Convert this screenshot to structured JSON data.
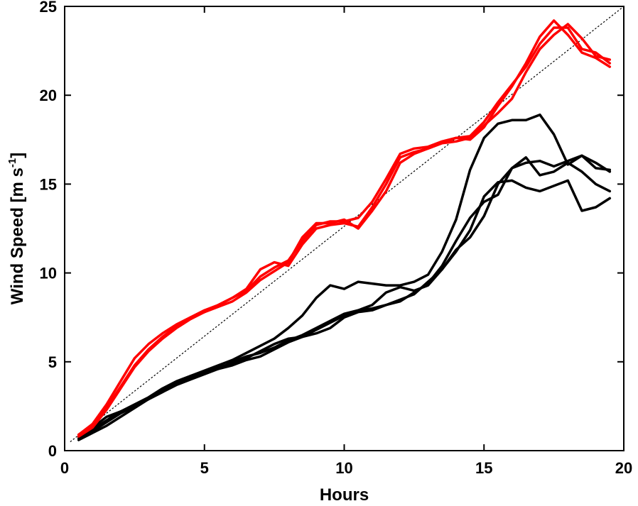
{
  "chart_data": {
    "type": "line",
    "title": "",
    "xlabel": "Hours",
    "ylabel": "Wind Speed [m s",
    "ylabel_superscript": "-1",
    "ylabel_close": "]",
    "xlim": [
      0,
      20
    ],
    "ylim": [
      0,
      25
    ],
    "xticks": [
      0,
      5,
      10,
      15,
      20
    ],
    "yticks": [
      0,
      5,
      10,
      15,
      20,
      25
    ],
    "grid": false,
    "colors": {
      "red_group": "#ff0000",
      "black_group": "#000000",
      "reference": "#000000"
    },
    "reference_line": {
      "style": "dotted",
      "points": [
        [
          0.2,
          0.5
        ],
        [
          20,
          25
        ]
      ]
    },
    "series": [
      {
        "color": "red_group",
        "points": [
          [
            0.5,
            0.9
          ],
          [
            1,
            1.4
          ],
          [
            1.5,
            2.4
          ],
          [
            2,
            3.6
          ],
          [
            2.5,
            4.8
          ],
          [
            3,
            5.7
          ],
          [
            3.5,
            6.4
          ],
          [
            4,
            7.0
          ],
          [
            4.5,
            7.5
          ],
          [
            5,
            7.9
          ],
          [
            5.5,
            8.2
          ],
          [
            6,
            8.6
          ],
          [
            6.5,
            9.0
          ],
          [
            7,
            9.8
          ],
          [
            7.5,
            10.3
          ],
          [
            8,
            10.7
          ],
          [
            8.5,
            11.8
          ],
          [
            9,
            12.7
          ],
          [
            9.5,
            12.9
          ],
          [
            10,
            12.9
          ],
          [
            10.5,
            13.1
          ],
          [
            11,
            14.0
          ],
          [
            11.5,
            15.3
          ],
          [
            12,
            16.7
          ],
          [
            12.5,
            17.0
          ],
          [
            13,
            17.1
          ],
          [
            13.5,
            17.4
          ],
          [
            14,
            17.6
          ],
          [
            14.5,
            17.7
          ],
          [
            15,
            18.5
          ],
          [
            15.5,
            19.6
          ],
          [
            16,
            20.6
          ],
          [
            16.5,
            21.6
          ],
          [
            17,
            22.9
          ],
          [
            17.5,
            23.8
          ],
          [
            18,
            23.8
          ],
          [
            18.5,
            22.6
          ],
          [
            19,
            22.4
          ],
          [
            19.5,
            21.8
          ]
        ]
      },
      {
        "color": "red_group",
        "points": [
          [
            0.5,
            0.8
          ],
          [
            1,
            1.3
          ],
          [
            1.5,
            2.3
          ],
          [
            2,
            3.5
          ],
          [
            2.5,
            4.7
          ],
          [
            3,
            5.6
          ],
          [
            3.5,
            6.3
          ],
          [
            4,
            6.9
          ],
          [
            4.5,
            7.4
          ],
          [
            5,
            7.8
          ],
          [
            5.5,
            8.2
          ],
          [
            6,
            8.6
          ],
          [
            6.5,
            9.1
          ],
          [
            7,
            10.2
          ],
          [
            7.5,
            10.6
          ],
          [
            8,
            10.4
          ],
          [
            8.5,
            11.6
          ],
          [
            9,
            12.5
          ],
          [
            9.5,
            12.7
          ],
          [
            10,
            12.8
          ],
          [
            10.5,
            12.6
          ],
          [
            11,
            13.7
          ],
          [
            11.5,
            15.0
          ],
          [
            12,
            16.5
          ],
          [
            12.5,
            16.8
          ],
          [
            13,
            17.0
          ],
          [
            13.5,
            17.3
          ],
          [
            14,
            17.6
          ],
          [
            14.5,
            17.5
          ],
          [
            15,
            18.2
          ],
          [
            15.5,
            19.4
          ],
          [
            16,
            20.5
          ],
          [
            16.5,
            21.8
          ],
          [
            17,
            23.3
          ],
          [
            17.5,
            24.2
          ],
          [
            18,
            23.4
          ],
          [
            18.5,
            22.4
          ],
          [
            19,
            22.1
          ],
          [
            19.5,
            21.6
          ]
        ]
      },
      {
        "color": "red_group",
        "points": [
          [
            0.5,
            0.9
          ],
          [
            1,
            1.5
          ],
          [
            1.5,
            2.6
          ],
          [
            2,
            3.9
          ],
          [
            2.5,
            5.2
          ],
          [
            3,
            6.0
          ],
          [
            3.5,
            6.6
          ],
          [
            4,
            7.1
          ],
          [
            4.5,
            7.5
          ],
          [
            5,
            7.8
          ],
          [
            5.5,
            8.1
          ],
          [
            6,
            8.4
          ],
          [
            6.5,
            8.9
          ],
          [
            7,
            9.6
          ],
          [
            7.5,
            10.1
          ],
          [
            8,
            10.6
          ],
          [
            8.5,
            12.0
          ],
          [
            9,
            12.8
          ],
          [
            9.5,
            12.8
          ],
          [
            10,
            13.0
          ],
          [
            10.5,
            12.5
          ],
          [
            11,
            13.5
          ],
          [
            11.5,
            14.6
          ],
          [
            12,
            16.2
          ],
          [
            12.5,
            16.7
          ],
          [
            13,
            17.0
          ],
          [
            13.5,
            17.3
          ],
          [
            14,
            17.4
          ],
          [
            14.5,
            17.6
          ],
          [
            15,
            18.3
          ],
          [
            15.5,
            19.0
          ],
          [
            16,
            19.8
          ],
          [
            16.5,
            21.3
          ],
          [
            17,
            22.6
          ],
          [
            17.5,
            23.4
          ],
          [
            18,
            24.0
          ],
          [
            18.5,
            23.2
          ],
          [
            19,
            22.2
          ],
          [
            19.5,
            22.0
          ]
        ]
      },
      {
        "color": "black_group",
        "points": [
          [
            0.5,
            0.7
          ],
          [
            1,
            1.3
          ],
          [
            1.5,
            1.9
          ],
          [
            2,
            2.2
          ],
          [
            2.5,
            2.5
          ],
          [
            3,
            2.9
          ],
          [
            3.5,
            3.3
          ],
          [
            4,
            3.8
          ],
          [
            4.5,
            4.2
          ],
          [
            5,
            4.5
          ],
          [
            5.5,
            4.8
          ],
          [
            6,
            5.1
          ],
          [
            6.5,
            5.5
          ],
          [
            7,
            5.9
          ],
          [
            7.5,
            6.3
          ],
          [
            8,
            6.9
          ],
          [
            8.5,
            7.6
          ],
          [
            9,
            8.6
          ],
          [
            9.5,
            9.3
          ],
          [
            10,
            9.1
          ],
          [
            10.5,
            9.5
          ],
          [
            11,
            9.4
          ],
          [
            11.5,
            9.3
          ],
          [
            12,
            9.3
          ],
          [
            12.5,
            9.5
          ],
          [
            13,
            9.9
          ],
          [
            13.5,
            11.2
          ],
          [
            14,
            13.0
          ],
          [
            14.5,
            15.8
          ],
          [
            15,
            17.6
          ],
          [
            15.5,
            18.4
          ],
          [
            16,
            18.6
          ],
          [
            16.5,
            18.6
          ],
          [
            17,
            18.9
          ],
          [
            17.5,
            17.8
          ],
          [
            18,
            16.1
          ],
          [
            18.5,
            16.6
          ],
          [
            19,
            16.2
          ],
          [
            19.5,
            15.7
          ]
        ]
      },
      {
        "color": "black_group",
        "points": [
          [
            0.5,
            0.8
          ],
          [
            1,
            1.2
          ],
          [
            1.5,
            1.7
          ],
          [
            2,
            2.2
          ],
          [
            2.5,
            2.6
          ],
          [
            3,
            3.0
          ],
          [
            3.5,
            3.5
          ],
          [
            4,
            3.9
          ],
          [
            4.5,
            4.2
          ],
          [
            5,
            4.4
          ],
          [
            5.5,
            4.6
          ],
          [
            6,
            5.0
          ],
          [
            6.5,
            5.3
          ],
          [
            7,
            5.5
          ],
          [
            7.5,
            5.8
          ],
          [
            8,
            6.2
          ],
          [
            8.5,
            6.5
          ],
          [
            9,
            6.9
          ],
          [
            9.5,
            7.3
          ],
          [
            10,
            7.7
          ],
          [
            10.5,
            7.9
          ],
          [
            11,
            8.2
          ],
          [
            11.5,
            8.9
          ],
          [
            12,
            9.2
          ],
          [
            12.5,
            9.0
          ],
          [
            13,
            9.3
          ],
          [
            13.5,
            10.2
          ],
          [
            14,
            11.3
          ],
          [
            14.5,
            12.0
          ],
          [
            15,
            13.2
          ],
          [
            15.5,
            15.0
          ],
          [
            16,
            15.9
          ],
          [
            16.5,
            16.2
          ],
          [
            17,
            16.3
          ],
          [
            17.5,
            16.0
          ],
          [
            18,
            16.3
          ],
          [
            18.5,
            16.6
          ],
          [
            19,
            15.9
          ],
          [
            19.5,
            15.8
          ]
        ]
      },
      {
        "color": "black_group",
        "points": [
          [
            0.5,
            0.7
          ],
          [
            1,
            1.1
          ],
          [
            1.5,
            1.6
          ],
          [
            2,
            2.1
          ],
          [
            2.5,
            2.5
          ],
          [
            3,
            2.9
          ],
          [
            3.5,
            3.4
          ],
          [
            4,
            3.8
          ],
          [
            4.5,
            4.1
          ],
          [
            5,
            4.4
          ],
          [
            5.5,
            4.7
          ],
          [
            6,
            4.9
          ],
          [
            6.5,
            5.2
          ],
          [
            7,
            5.6
          ],
          [
            7.5,
            6.0
          ],
          [
            8,
            6.3
          ],
          [
            8.5,
            6.4
          ],
          [
            9,
            6.6
          ],
          [
            9.5,
            6.9
          ],
          [
            10,
            7.5
          ],
          [
            10.5,
            7.8
          ],
          [
            11,
            7.9
          ],
          [
            11.5,
            8.2
          ],
          [
            12,
            8.5
          ],
          [
            12.5,
            8.8
          ],
          [
            13,
            9.5
          ],
          [
            13.5,
            10.2
          ],
          [
            14,
            11.2
          ],
          [
            14.5,
            12.4
          ],
          [
            15,
            14.3
          ],
          [
            15.5,
            15.1
          ],
          [
            16,
            15.2
          ],
          [
            16.5,
            14.8
          ],
          [
            17,
            14.6
          ],
          [
            17.5,
            14.9
          ],
          [
            18,
            15.2
          ],
          [
            18.5,
            13.5
          ],
          [
            19,
            13.7
          ],
          [
            19.5,
            14.2
          ]
        ]
      },
      {
        "color": "black_group",
        "points": [
          [
            0.5,
            0.6
          ],
          [
            1,
            1.0
          ],
          [
            1.5,
            1.4
          ],
          [
            2,
            1.9
          ],
          [
            2.5,
            2.4
          ],
          [
            3,
            2.9
          ],
          [
            3.5,
            3.3
          ],
          [
            4,
            3.7
          ],
          [
            4.5,
            4.0
          ],
          [
            5,
            4.3
          ],
          [
            5.5,
            4.6
          ],
          [
            6,
            4.8
          ],
          [
            6.5,
            5.1
          ],
          [
            7,
            5.3
          ],
          [
            7.5,
            5.7
          ],
          [
            8,
            6.1
          ],
          [
            8.5,
            6.4
          ],
          [
            9,
            6.8
          ],
          [
            9.5,
            7.2
          ],
          [
            10,
            7.6
          ],
          [
            10.5,
            7.9
          ],
          [
            11,
            8.0
          ],
          [
            11.5,
            8.2
          ],
          [
            12,
            8.4
          ],
          [
            12.5,
            8.9
          ],
          [
            13,
            9.4
          ],
          [
            13.5,
            10.4
          ],
          [
            14,
            11.8
          ],
          [
            14.5,
            13.1
          ],
          [
            15,
            14.0
          ],
          [
            15.5,
            14.4
          ],
          [
            16,
            15.9
          ],
          [
            16.5,
            16.5
          ],
          [
            17,
            15.5
          ],
          [
            17.5,
            15.7
          ],
          [
            18,
            16.2
          ],
          [
            18.5,
            15.7
          ],
          [
            19,
            15.0
          ],
          [
            19.5,
            14.6
          ]
        ]
      }
    ]
  }
}
